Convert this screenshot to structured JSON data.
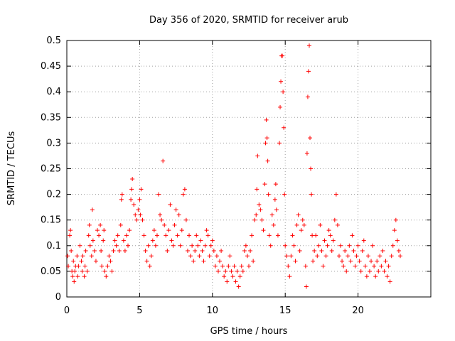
{
  "chart_data": {
    "type": "scatter",
    "title": "Day 356 of 2020, SRMTID for receiver arub",
    "xlabel": "GPS time / hours",
    "ylabel": "SRMTID / TECUs",
    "xlim": [
      0,
      25
    ],
    "ylim": [
      0,
      0.5
    ],
    "xticks": [
      0,
      5,
      10,
      15,
      20
    ],
    "xtick_labels": [
      "0",
      "5",
      "10",
      "15",
      "20"
    ],
    "yticks": [
      0,
      0.05,
      0.1,
      0.15,
      0.2,
      0.25,
      0.3,
      0.35,
      0.4,
      0.45,
      0.5
    ],
    "ytick_labels": [
      "0",
      "0.05",
      "0.1",
      "0.15",
      "0.2",
      "0.25",
      "0.3",
      "0.35",
      "0.4",
      "0.45",
      "0.5"
    ],
    "grid": true,
    "marker": "+",
    "color": "#ff0000",
    "series": [
      {
        "name": "SRMTID",
        "points": [
          [
            0.05,
            0.08
          ],
          [
            0.1,
            0.06
          ],
          [
            0.2,
            0.12
          ],
          [
            0.25,
            0.13
          ],
          [
            0.3,
            0.09
          ],
          [
            0.35,
            0.05
          ],
          [
            0.4,
            0.04
          ],
          [
            0.45,
            0.07
          ],
          [
            0.5,
            0.03
          ],
          [
            0.55,
            0.05
          ],
          [
            0.6,
            0.06
          ],
          [
            0.7,
            0.08
          ],
          [
            0.75,
            0.04
          ],
          [
            0.8,
            0.06
          ],
          [
            0.9,
            0.1
          ],
          [
            1.0,
            0.07
          ],
          [
            1.05,
            0.05
          ],
          [
            1.1,
            0.08
          ],
          [
            1.2,
            0.04
          ],
          [
            1.25,
            0.06
          ],
          [
            1.3,
            0.09
          ],
          [
            1.4,
            0.05
          ],
          [
            1.5,
            0.12
          ],
          [
            1.55,
            0.14
          ],
          [
            1.6,
            0.1
          ],
          [
            1.7,
            0.08
          ],
          [
            1.75,
            0.17
          ],
          [
            1.8,
            0.11
          ],
          [
            1.9,
            0.09
          ],
          [
            2.0,
            0.07
          ],
          [
            2.1,
            0.13
          ],
          [
            2.2,
            0.12
          ],
          [
            2.3,
            0.14
          ],
          [
            2.35,
            0.09
          ],
          [
            2.4,
            0.06
          ],
          [
            2.5,
            0.11
          ],
          [
            2.55,
            0.13
          ],
          [
            2.6,
            0.05
          ],
          [
            2.7,
            0.04
          ],
          [
            2.8,
            0.06
          ],
          [
            2.9,
            0.08
          ],
          [
            3.0,
            0.07
          ],
          [
            3.1,
            0.05
          ],
          [
            3.2,
            0.09
          ],
          [
            3.3,
            0.11
          ],
          [
            3.4,
            0.1
          ],
          [
            3.5,
            0.12
          ],
          [
            3.6,
            0.09
          ],
          [
            3.7,
            0.14
          ],
          [
            3.75,
            0.19
          ],
          [
            3.8,
            0.2
          ],
          [
            3.9,
            0.11
          ],
          [
            4.0,
            0.09
          ],
          [
            4.1,
            0.12
          ],
          [
            4.2,
            0.1
          ],
          [
            4.3,
            0.13
          ],
          [
            4.4,
            0.19
          ],
          [
            4.45,
            0.21
          ],
          [
            4.5,
            0.23
          ],
          [
            4.6,
            0.18
          ],
          [
            4.7,
            0.16
          ],
          [
            4.8,
            0.15
          ],
          [
            4.9,
            0.17
          ],
          [
            5.0,
            0.19
          ],
          [
            5.05,
            0.16
          ],
          [
            5.1,
            0.21
          ],
          [
            5.2,
            0.15
          ],
          [
            5.3,
            0.12
          ],
          [
            5.4,
            0.09
          ],
          [
            5.5,
            0.07
          ],
          [
            5.6,
            0.1
          ],
          [
            5.7,
            0.06
          ],
          [
            5.8,
            0.08
          ],
          [
            5.9,
            0.11
          ],
          [
            6.0,
            0.13
          ],
          [
            6.1,
            0.1
          ],
          [
            6.2,
            0.12
          ],
          [
            6.3,
            0.2
          ],
          [
            6.4,
            0.16
          ],
          [
            6.5,
            0.15
          ],
          [
            6.6,
            0.265
          ],
          [
            6.7,
            0.14
          ],
          [
            6.8,
            0.12
          ],
          [
            6.9,
            0.09
          ],
          [
            7.0,
            0.13
          ],
          [
            7.1,
            0.18
          ],
          [
            7.2,
            0.11
          ],
          [
            7.3,
            0.1
          ],
          [
            7.4,
            0.14
          ],
          [
            7.5,
            0.17
          ],
          [
            7.6,
            0.12
          ],
          [
            7.7,
            0.16
          ],
          [
            7.8,
            0.1
          ],
          [
            7.9,
            0.13
          ],
          [
            8.0,
            0.2
          ],
          [
            8.1,
            0.21
          ],
          [
            8.2,
            0.15
          ],
          [
            8.3,
            0.09
          ],
          [
            8.4,
            0.12
          ],
          [
            8.5,
            0.08
          ],
          [
            8.6,
            0.1
          ],
          [
            8.7,
            0.07
          ],
          [
            8.8,
            0.09
          ],
          [
            8.9,
            0.12
          ],
          [
            9.0,
            0.1
          ],
          [
            9.1,
            0.08
          ],
          [
            9.2,
            0.11
          ],
          [
            9.3,
            0.09
          ],
          [
            9.4,
            0.07
          ],
          [
            9.5,
            0.1
          ],
          [
            9.6,
            0.13
          ],
          [
            9.7,
            0.12
          ],
          [
            9.8,
            0.08
          ],
          [
            9.9,
            0.1
          ],
          [
            10.0,
            0.11
          ],
          [
            10.1,
            0.09
          ],
          [
            10.2,
            0.06
          ],
          [
            10.3,
            0.08
          ],
          [
            10.4,
            0.05
          ],
          [
            10.5,
            0.07
          ],
          [
            10.6,
            0.09
          ],
          [
            10.7,
            0.06
          ],
          [
            10.8,
            0.04
          ],
          [
            10.9,
            0.05
          ],
          [
            11.0,
            0.03
          ],
          [
            11.1,
            0.06
          ],
          [
            11.2,
            0.08
          ],
          [
            11.3,
            0.05
          ],
          [
            11.4,
            0.04
          ],
          [
            11.5,
            0.06
          ],
          [
            11.6,
            0.03
          ],
          [
            11.7,
            0.05
          ],
          [
            11.8,
            0.02
          ],
          [
            11.9,
            0.04
          ],
          [
            12.0,
            0.06
          ],
          [
            12.1,
            0.05
          ],
          [
            12.2,
            0.09
          ],
          [
            12.3,
            0.1
          ],
          [
            12.4,
            0.08
          ],
          [
            12.5,
            0.06
          ],
          [
            12.6,
            0.09
          ],
          [
            12.7,
            0.12
          ],
          [
            12.8,
            0.07
          ],
          [
            12.9,
            0.15
          ],
          [
            13.0,
            0.16
          ],
          [
            13.05,
            0.21
          ],
          [
            13.1,
            0.275
          ],
          [
            13.2,
            0.18
          ],
          [
            13.3,
            0.17
          ],
          [
            13.4,
            0.15
          ],
          [
            13.5,
            0.13
          ],
          [
            13.6,
            0.22
          ],
          [
            13.65,
            0.3
          ],
          [
            13.7,
            0.345
          ],
          [
            13.75,
            0.31
          ],
          [
            13.8,
            0.265
          ],
          [
            13.85,
            0.2
          ],
          [
            13.9,
            0.12
          ],
          [
            14.0,
            0.1
          ],
          [
            14.1,
            0.16
          ],
          [
            14.2,
            0.14
          ],
          [
            14.3,
            0.19
          ],
          [
            14.35,
            0.22
          ],
          [
            14.4,
            0.17
          ],
          [
            14.5,
            0.12
          ],
          [
            14.6,
            0.3
          ],
          [
            14.65,
            0.37
          ],
          [
            14.7,
            0.42
          ],
          [
            14.75,
            0.47
          ],
          [
            14.8,
            0.47
          ],
          [
            14.85,
            0.4
          ],
          [
            14.9,
            0.33
          ],
          [
            14.95,
            0.2
          ],
          [
            15.0,
            0.1
          ],
          [
            15.1,
            0.08
          ],
          [
            15.2,
            0.06
          ],
          [
            15.3,
            0.04
          ],
          [
            15.4,
            0.08
          ],
          [
            15.5,
            0.12
          ],
          [
            15.6,
            0.1
          ],
          [
            15.7,
            0.07
          ],
          [
            15.8,
            0.14
          ],
          [
            15.9,
            0.16
          ],
          [
            16.0,
            0.09
          ],
          [
            16.1,
            0.13
          ],
          [
            16.2,
            0.15
          ],
          [
            16.3,
            0.14
          ],
          [
            16.4,
            0.06
          ],
          [
            16.45,
            0.02
          ],
          [
            16.5,
            0.28
          ],
          [
            16.55,
            0.39
          ],
          [
            16.6,
            0.44
          ],
          [
            16.65,
            0.49
          ],
          [
            16.7,
            0.31
          ],
          [
            16.75,
            0.25
          ],
          [
            16.8,
            0.2
          ],
          [
            16.85,
            0.12
          ],
          [
            16.9,
            0.07
          ],
          [
            17.0,
            0.09
          ],
          [
            17.1,
            0.12
          ],
          [
            17.2,
            0.08
          ],
          [
            17.3,
            0.1
          ],
          [
            17.4,
            0.14
          ],
          [
            17.5,
            0.09
          ],
          [
            17.6,
            0.06
          ],
          [
            17.7,
            0.11
          ],
          [
            17.8,
            0.08
          ],
          [
            17.9,
            0.1
          ],
          [
            18.0,
            0.13
          ],
          [
            18.1,
            0.12
          ],
          [
            18.2,
            0.09
          ],
          [
            18.3,
            0.11
          ],
          [
            18.4,
            0.15
          ],
          [
            18.5,
            0.2
          ],
          [
            18.6,
            0.14
          ],
          [
            18.7,
            0.08
          ],
          [
            18.8,
            0.1
          ],
          [
            18.9,
            0.07
          ],
          [
            19.0,
            0.06
          ],
          [
            19.1,
            0.09
          ],
          [
            19.2,
            0.05
          ],
          [
            19.3,
            0.08
          ],
          [
            19.4,
            0.1
          ],
          [
            19.5,
            0.07
          ],
          [
            19.6,
            0.12
          ],
          [
            19.7,
            0.09
          ],
          [
            19.8,
            0.06
          ],
          [
            19.9,
            0.08
          ],
          [
            20.0,
            0.1
          ],
          [
            20.1,
            0.07
          ],
          [
            20.2,
            0.05
          ],
          [
            20.3,
            0.09
          ],
          [
            20.4,
            0.11
          ],
          [
            20.5,
            0.06
          ],
          [
            20.6,
            0.04
          ],
          [
            20.7,
            0.08
          ],
          [
            20.8,
            0.05
          ],
          [
            20.9,
            0.07
          ],
          [
            21.0,
            0.1
          ],
          [
            21.1,
            0.06
          ],
          [
            21.2,
            0.04
          ],
          [
            21.3,
            0.07
          ],
          [
            21.4,
            0.05
          ],
          [
            21.5,
            0.08
          ],
          [
            21.6,
            0.06
          ],
          [
            21.7,
            0.09
          ],
          [
            21.8,
            0.05
          ],
          [
            21.9,
            0.07
          ],
          [
            22.0,
            0.04
          ],
          [
            22.1,
            0.06
          ],
          [
            22.2,
            0.03
          ],
          [
            22.3,
            0.08
          ],
          [
            22.4,
            0.1
          ],
          [
            22.5,
            0.13
          ],
          [
            22.6,
            0.15
          ],
          [
            22.7,
            0.11
          ],
          [
            22.8,
            0.09
          ],
          [
            22.9,
            0.08
          ]
        ]
      }
    ]
  }
}
